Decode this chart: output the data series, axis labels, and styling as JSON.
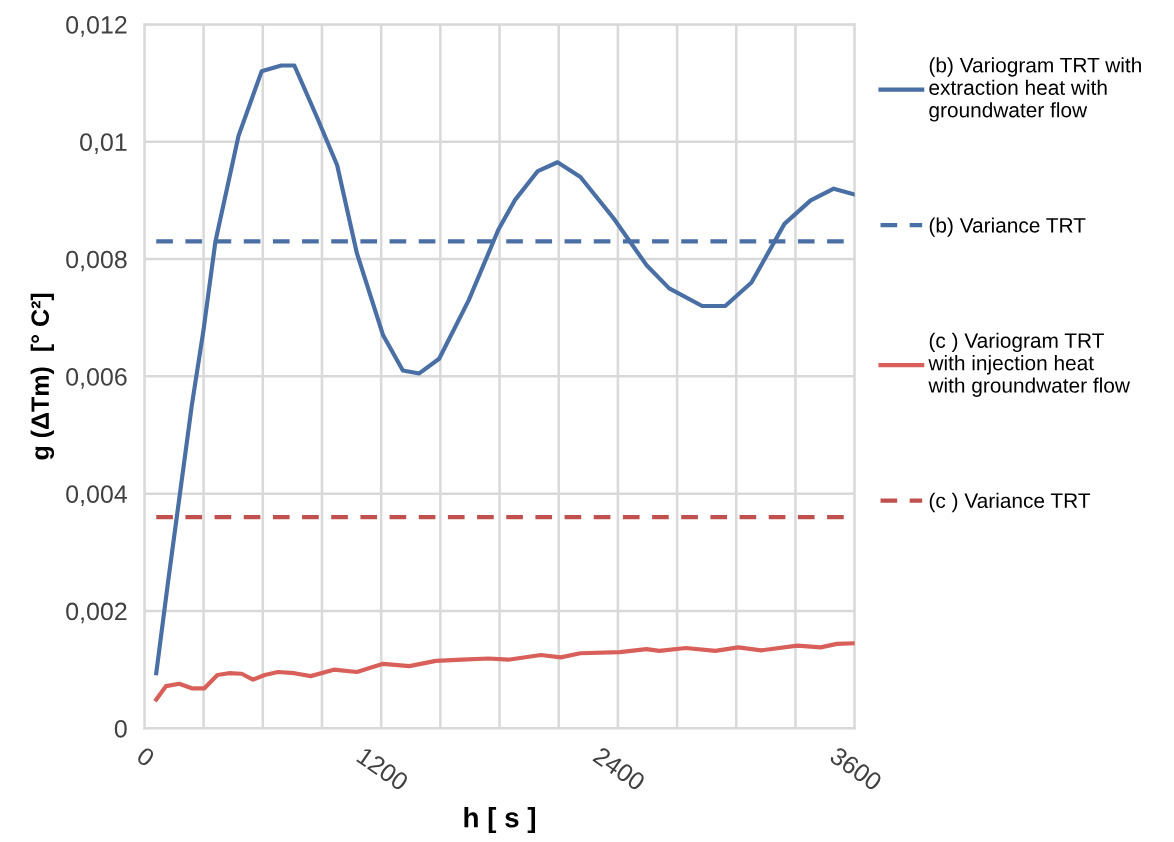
{
  "chart_data": {
    "type": "line",
    "xlabel": "h [ s ]",
    "ylabel": "g (ΔTm)  [° C²]",
    "xlim": [
      0,
      3600
    ],
    "ylim": [
      0,
      0.012
    ],
    "xticks": [
      0,
      {
        "value": 300,
        "label": null
      },
      {
        "value": 600,
        "label": null
      },
      {
        "value": 900,
        "label": null
      },
      1200,
      {
        "value": 1500,
        "label": null
      },
      {
        "value": 1800,
        "label": null
      },
      {
        "value": 2100,
        "label": null
      },
      2400,
      {
        "value": 2700,
        "label": null
      },
      {
        "value": 3000,
        "label": null
      },
      {
        "value": 3300,
        "label": null
      },
      3600
    ],
    "yticks": [
      0,
      {
        "value": 0.002,
        "label": "0,002"
      },
      {
        "value": 0.004,
        "label": "0,004"
      },
      {
        "value": 0.006,
        "label": "0,006"
      },
      {
        "value": 0.008,
        "label": "0,008"
      },
      {
        "value": 0.01,
        "label": "0,01"
      },
      {
        "value": 0.012,
        "label": "0,012"
      }
    ],
    "grid": true,
    "legend": "right",
    "marker": "none",
    "series": [
      {
        "name": "(b) Variogram TRT with extraction heat with groundwater flow",
        "color": "#4a6fa5",
        "line_style": "solid",
        "x": [
          60,
          120,
          180,
          240,
          300,
          360,
          477,
          594,
          694,
          760,
          877,
          977,
          1077,
          1210,
          1310,
          1393,
          1494,
          1644,
          1794,
          1877,
          1994,
          2094,
          2210,
          2377,
          2544,
          2660,
          2827,
          2944,
          3077,
          3244,
          3377,
          3494,
          3600
        ],
        "values": [
          0.00094,
          0.0025,
          0.004,
          0.0055,
          0.0068,
          0.0083,
          0.0101,
          0.0112,
          0.0113,
          0.0113,
          0.0104,
          0.0096,
          0.0081,
          0.0067,
          0.0061,
          0.00605,
          0.0063,
          0.0073,
          0.0085,
          0.009,
          0.0095,
          0.00965,
          0.0094,
          0.0087,
          0.0079,
          0.0075,
          0.0072,
          0.0072,
          0.0076,
          0.0086,
          0.009,
          0.0092,
          0.0091
        ]
      },
      {
        "name": "(b) Variance TRT",
        "color": "#4a6fa5",
        "line_style": "dashed",
        "x": [
          60,
          3600
        ],
        "values": [
          0.0083,
          0.0083
        ]
      },
      {
        "name": "(c ) Variogram TRT with injection heat with groundwater flow",
        "color": "#d9605a",
        "line_style": "solid",
        "x": [
          60,
          110,
          177,
          243,
          303,
          370,
          427,
          493,
          550,
          610,
          677,
          760,
          843,
          960,
          1077,
          1210,
          1343,
          1477,
          1610,
          1744,
          1844,
          2010,
          2110,
          2210,
          2410,
          2544,
          2610,
          2744,
          2894,
          3010,
          3127,
          3310,
          3427,
          3510,
          3600
        ],
        "values": [
          0.00049,
          0.00072,
          0.00076,
          0.00068,
          0.00068,
          0.00091,
          0.00094,
          0.00093,
          0.00083,
          0.00091,
          0.00096,
          0.00094,
          0.00089,
          0.001,
          0.00096,
          0.0011,
          0.00106,
          0.00115,
          0.00117,
          0.00119,
          0.00117,
          0.00125,
          0.00121,
          0.00128,
          0.0013,
          0.00135,
          0.00132,
          0.00137,
          0.00132,
          0.00138,
          0.00133,
          0.00141,
          0.00138,
          0.00144,
          0.00145
        ]
      },
      {
        "name": "(c ) Variance TRT",
        "color": "#c0504d",
        "line_style": "dashed",
        "x": [
          60,
          3600
        ],
        "values": [
          0.0036,
          0.0036
        ]
      }
    ]
  }
}
